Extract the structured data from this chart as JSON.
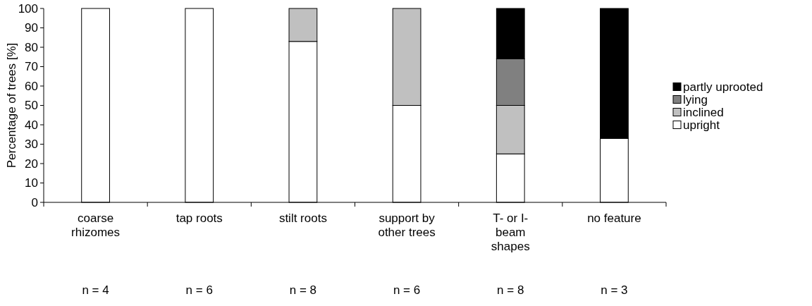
{
  "chart_data": {
    "type": "bar",
    "stacked": true,
    "ylabel": "Percentage of trees [%]",
    "categories": [
      "coarse rhizomes",
      "tap roots",
      "stilt roots",
      "support by other trees",
      "T- or I-beam shapes",
      "no feature"
    ],
    "series": [
      {
        "name": "upright",
        "color": "#ffffff",
        "values": [
          100,
          100,
          83,
          50,
          25,
          33
        ]
      },
      {
        "name": "inclined",
        "color": "#c0c0c0",
        "values": [
          0,
          0,
          17,
          50,
          25,
          0
        ]
      },
      {
        "name": "lying",
        "color": "#808080",
        "values": [
          0,
          0,
          0,
          0,
          24,
          0
        ]
      },
      {
        "name": "partly uprooted",
        "color": "#000000",
        "values": [
          0,
          0,
          0,
          0,
          26,
          67
        ]
      }
    ],
    "ylim": [
      0,
      100
    ],
    "yticks": [
      0,
      10,
      20,
      30,
      40,
      50,
      60,
      70,
      80,
      90,
      100
    ],
    "legend": "right",
    "annotations": [
      "n = 4",
      "n = 6",
      "n = 8",
      "n = 6",
      "n = 8",
      "n = 3"
    ]
  }
}
